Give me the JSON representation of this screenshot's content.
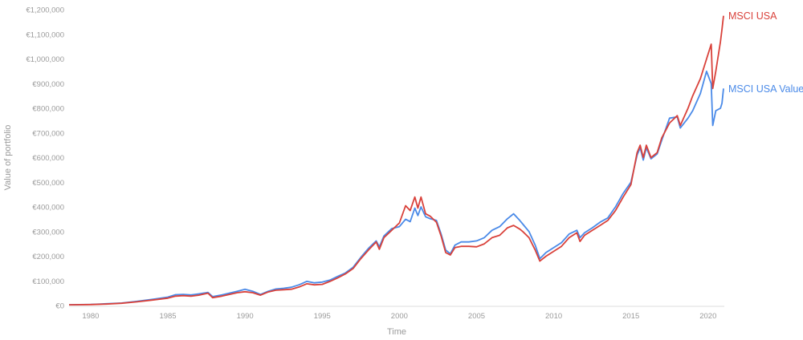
{
  "chart_data": {
    "type": "line",
    "title": "",
    "xlabel": "Time",
    "ylabel": "Value of portfolio",
    "xlim": [
      1978.6,
      2021.05
    ],
    "ylim": [
      0,
      1200000
    ],
    "x_ticks": [
      1980,
      1985,
      1990,
      1995,
      2000,
      2005,
      2010,
      2015,
      2020
    ],
    "x_tick_labels": [
      "1980",
      "1985",
      "1990",
      "1995",
      "2000",
      "2005",
      "2010",
      "2015",
      "2020"
    ],
    "y_ticks": [
      0,
      100000,
      200000,
      300000,
      400000,
      500000,
      600000,
      700000,
      800000,
      900000,
      1000000,
      1100000,
      1200000
    ],
    "y_tick_labels": [
      "€0",
      "€100,000",
      "€200,000",
      "€300,000",
      "€400,000",
      "€500,000",
      "€600,000",
      "€700,000",
      "€800,000",
      "€900,000",
      "€1,000,000",
      "€1,100,000",
      "€1,200,000"
    ],
    "grid": false,
    "legend": "direct labels at line ends",
    "series": [
      {
        "name": "MSCI USA",
        "color": "#d9413a",
        "points": [
          [
            1978.6,
            3000
          ],
          [
            1980.0,
            4000
          ],
          [
            1981.0,
            6000
          ],
          [
            1982.0,
            9000
          ],
          [
            1983.0,
            15000
          ],
          [
            1984.0,
            22000
          ],
          [
            1985.0,
            30000
          ],
          [
            1985.5,
            38000
          ],
          [
            1986.0,
            40000
          ],
          [
            1986.5,
            38000
          ],
          [
            1987.0,
            42000
          ],
          [
            1987.6,
            50000
          ],
          [
            1987.9,
            32000
          ],
          [
            1988.5,
            38000
          ],
          [
            1989.5,
            52000
          ],
          [
            1990.0,
            56000
          ],
          [
            1990.5,
            52000
          ],
          [
            1991.0,
            42000
          ],
          [
            1991.5,
            55000
          ],
          [
            1992.0,
            62000
          ],
          [
            1992.5,
            64000
          ],
          [
            1993.0,
            66000
          ],
          [
            1993.5,
            75000
          ],
          [
            1994.0,
            88000
          ],
          [
            1994.5,
            84000
          ],
          [
            1995.0,
            86000
          ],
          [
            1995.5,
            98000
          ],
          [
            1996.0,
            112000
          ],
          [
            1996.5,
            128000
          ],
          [
            1997.0,
            150000
          ],
          [
            1997.5,
            190000
          ],
          [
            1998.0,
            225000
          ],
          [
            1998.5,
            258000
          ],
          [
            1998.7,
            228000
          ],
          [
            1999.0,
            275000
          ],
          [
            1999.5,
            305000
          ],
          [
            2000.0,
            335000
          ],
          [
            2000.4,
            405000
          ],
          [
            2000.7,
            385000
          ],
          [
            2001.0,
            440000
          ],
          [
            2001.2,
            395000
          ],
          [
            2001.4,
            440000
          ],
          [
            2001.7,
            372000
          ],
          [
            2002.0,
            362000
          ],
          [
            2002.4,
            338000
          ],
          [
            2002.7,
            282000
          ],
          [
            2003.0,
            215000
          ],
          [
            2003.3,
            205000
          ],
          [
            2003.6,
            235000
          ],
          [
            2004.0,
            240000
          ],
          [
            2004.5,
            240000
          ],
          [
            2005.0,
            238000
          ],
          [
            2005.5,
            250000
          ],
          [
            2006.0,
            275000
          ],
          [
            2006.5,
            285000
          ],
          [
            2007.0,
            315000
          ],
          [
            2007.4,
            325000
          ],
          [
            2007.8,
            310000
          ],
          [
            2008.0,
            300000
          ],
          [
            2008.4,
            275000
          ],
          [
            2008.8,
            225000
          ],
          [
            2009.1,
            180000
          ],
          [
            2009.5,
            200000
          ],
          [
            2010.0,
            220000
          ],
          [
            2010.5,
            240000
          ],
          [
            2011.0,
            275000
          ],
          [
            2011.5,
            295000
          ],
          [
            2011.7,
            260000
          ],
          [
            2012.0,
            285000
          ],
          [
            2012.5,
            305000
          ],
          [
            2013.0,
            325000
          ],
          [
            2013.5,
            345000
          ],
          [
            2014.0,
            385000
          ],
          [
            2014.5,
            440000
          ],
          [
            2015.0,
            490000
          ],
          [
            2015.4,
            620000
          ],
          [
            2015.6,
            650000
          ],
          [
            2015.8,
            600000
          ],
          [
            2016.0,
            650000
          ],
          [
            2016.3,
            600000
          ],
          [
            2016.7,
            620000
          ],
          [
            2017.0,
            680000
          ],
          [
            2017.5,
            740000
          ],
          [
            2018.0,
            770000
          ],
          [
            2018.2,
            730000
          ],
          [
            2018.7,
            800000
          ],
          [
            2019.0,
            850000
          ],
          [
            2019.5,
            920000
          ],
          [
            2019.9,
            1000000
          ],
          [
            2020.2,
            1060000
          ],
          [
            2020.3,
            880000
          ],
          [
            2020.5,
            950000
          ],
          [
            2020.8,
            1070000
          ],
          [
            2020.9,
            1120000
          ],
          [
            2021.0,
            1175000
          ]
        ]
      },
      {
        "name": "MSCI USA Value",
        "color": "#4a8ae8",
        "points": [
          [
            1978.6,
            3000
          ],
          [
            1980.0,
            4500
          ],
          [
            1981.0,
            7000
          ],
          [
            1982.0,
            10000
          ],
          [
            1983.0,
            17000
          ],
          [
            1984.0,
            25000
          ],
          [
            1985.0,
            34000
          ],
          [
            1985.5,
            44000
          ],
          [
            1986.0,
            45000
          ],
          [
            1986.5,
            43000
          ],
          [
            1987.0,
            47000
          ],
          [
            1987.6,
            53000
          ],
          [
            1987.9,
            36000
          ],
          [
            1988.5,
            43000
          ],
          [
            1989.5,
            58000
          ],
          [
            1990.0,
            66000
          ],
          [
            1990.5,
            58000
          ],
          [
            1991.0,
            45000
          ],
          [
            1991.5,
            58000
          ],
          [
            1992.0,
            67000
          ],
          [
            1992.5,
            70000
          ],
          [
            1993.0,
            74000
          ],
          [
            1993.5,
            84000
          ],
          [
            1994.0,
            98000
          ],
          [
            1994.5,
            92000
          ],
          [
            1995.0,
            95000
          ],
          [
            1995.5,
            103000
          ],
          [
            1996.0,
            118000
          ],
          [
            1996.5,
            132000
          ],
          [
            1997.0,
            155000
          ],
          [
            1997.5,
            195000
          ],
          [
            1998.0,
            232000
          ],
          [
            1998.5,
            262000
          ],
          [
            1998.7,
            238000
          ],
          [
            1999.0,
            282000
          ],
          [
            1999.5,
            312000
          ],
          [
            2000.0,
            320000
          ],
          [
            2000.4,
            350000
          ],
          [
            2000.7,
            340000
          ],
          [
            2001.0,
            395000
          ],
          [
            2001.2,
            365000
          ],
          [
            2001.4,
            400000
          ],
          [
            2001.7,
            360000
          ],
          [
            2002.0,
            352000
          ],
          [
            2002.4,
            345000
          ],
          [
            2002.7,
            290000
          ],
          [
            2003.0,
            225000
          ],
          [
            2003.3,
            210000
          ],
          [
            2003.6,
            245000
          ],
          [
            2004.0,
            258000
          ],
          [
            2004.5,
            258000
          ],
          [
            2005.0,
            262000
          ],
          [
            2005.5,
            275000
          ],
          [
            2006.0,
            305000
          ],
          [
            2006.5,
            320000
          ],
          [
            2007.0,
            352000
          ],
          [
            2007.4,
            372000
          ],
          [
            2007.8,
            345000
          ],
          [
            2008.0,
            330000
          ],
          [
            2008.4,
            300000
          ],
          [
            2008.8,
            245000
          ],
          [
            2009.1,
            190000
          ],
          [
            2009.5,
            215000
          ],
          [
            2010.0,
            235000
          ],
          [
            2010.5,
            255000
          ],
          [
            2011.0,
            290000
          ],
          [
            2011.5,
            305000
          ],
          [
            2011.7,
            275000
          ],
          [
            2012.0,
            295000
          ],
          [
            2012.5,
            315000
          ],
          [
            2013.0,
            338000
          ],
          [
            2013.5,
            355000
          ],
          [
            2014.0,
            400000
          ],
          [
            2014.5,
            455000
          ],
          [
            2015.0,
            500000
          ],
          [
            2015.4,
            610000
          ],
          [
            2015.6,
            640000
          ],
          [
            2015.8,
            590000
          ],
          [
            2016.0,
            640000
          ],
          [
            2016.3,
            595000
          ],
          [
            2016.7,
            615000
          ],
          [
            2017.0,
            670000
          ],
          [
            2017.5,
            760000
          ],
          [
            2018.0,
            765000
          ],
          [
            2018.2,
            720000
          ],
          [
            2018.7,
            760000
          ],
          [
            2019.0,
            790000
          ],
          [
            2019.5,
            860000
          ],
          [
            2019.9,
            950000
          ],
          [
            2020.2,
            900000
          ],
          [
            2020.3,
            730000
          ],
          [
            2020.5,
            790000
          ],
          [
            2020.8,
            800000
          ],
          [
            2020.9,
            820000
          ],
          [
            2021.0,
            880000
          ]
        ]
      }
    ]
  }
}
